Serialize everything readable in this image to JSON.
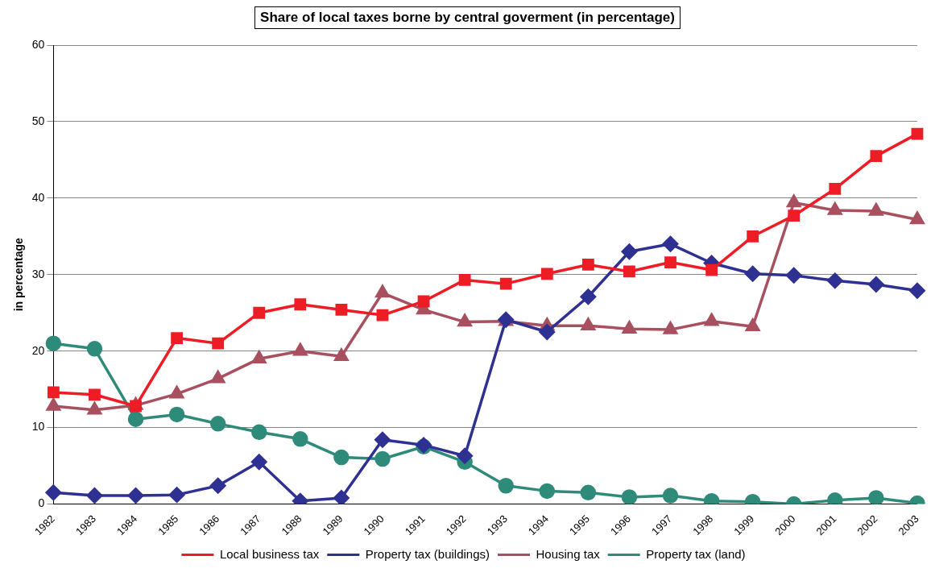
{
  "chart_data": {
    "type": "line",
    "title": "Share of local taxes borne by central goverment (in percentage)",
    "ylabel": "in percentage",
    "categories": [
      "1982",
      "1983",
      "1984",
      "1985",
      "1986",
      "1987",
      "1988",
      "1989",
      "1990",
      "1991",
      "1992",
      "1993",
      "1994",
      "1995",
      "1996",
      "1997",
      "1998",
      "1999",
      "2000",
      "2001",
      "2002",
      "2003"
    ],
    "ylim": [
      0,
      60
    ],
    "yticks": [
      0,
      10,
      20,
      30,
      40,
      50,
      60
    ],
    "grid": "y",
    "legend": "bottom",
    "line_style": "solid",
    "series": [
      {
        "name": "Local business tax",
        "color": "#ee1c25",
        "marker": "square",
        "values": [
          14.6,
          14.3,
          12.8,
          21.7,
          21.0,
          25.0,
          26.1,
          25.4,
          24.7,
          26.5,
          29.3,
          28.8,
          30.1,
          31.3,
          30.4,
          31.6,
          30.6,
          35.0,
          37.7,
          41.2,
          45.5,
          48.4
        ]
      },
      {
        "name": "Property tax (buildings)",
        "color": "#2e3192",
        "marker": "diamond",
        "values": [
          1.5,
          1.1,
          1.1,
          1.2,
          2.4,
          5.5,
          0.4,
          0.8,
          8.4,
          7.7,
          6.3,
          24.1,
          22.5,
          27.1,
          33.0,
          34.0,
          31.5,
          30.1,
          29.9,
          29.2,
          28.7,
          27.9
        ]
      },
      {
        "name": "Housing tax",
        "color": "#a8505f",
        "marker": "triangle",
        "values": [
          12.8,
          12.3,
          12.9,
          14.4,
          16.4,
          19.0,
          20.0,
          19.3,
          27.6,
          25.4,
          23.8,
          23.9,
          23.3,
          23.3,
          22.9,
          22.8,
          23.9,
          23.2,
          39.4,
          38.4,
          38.3,
          37.2
        ]
      },
      {
        "name": "Property tax (land)",
        "color": "#2e8b7a",
        "marker": "circle",
        "values": [
          21.0,
          20.3,
          11.1,
          11.7,
          10.5,
          9.4,
          8.5,
          6.1,
          5.9,
          7.5,
          5.5,
          2.4,
          1.7,
          1.5,
          0.9,
          1.1,
          0.4,
          0.3,
          0,
          0.5,
          0.8,
          0.1
        ]
      }
    ]
  }
}
